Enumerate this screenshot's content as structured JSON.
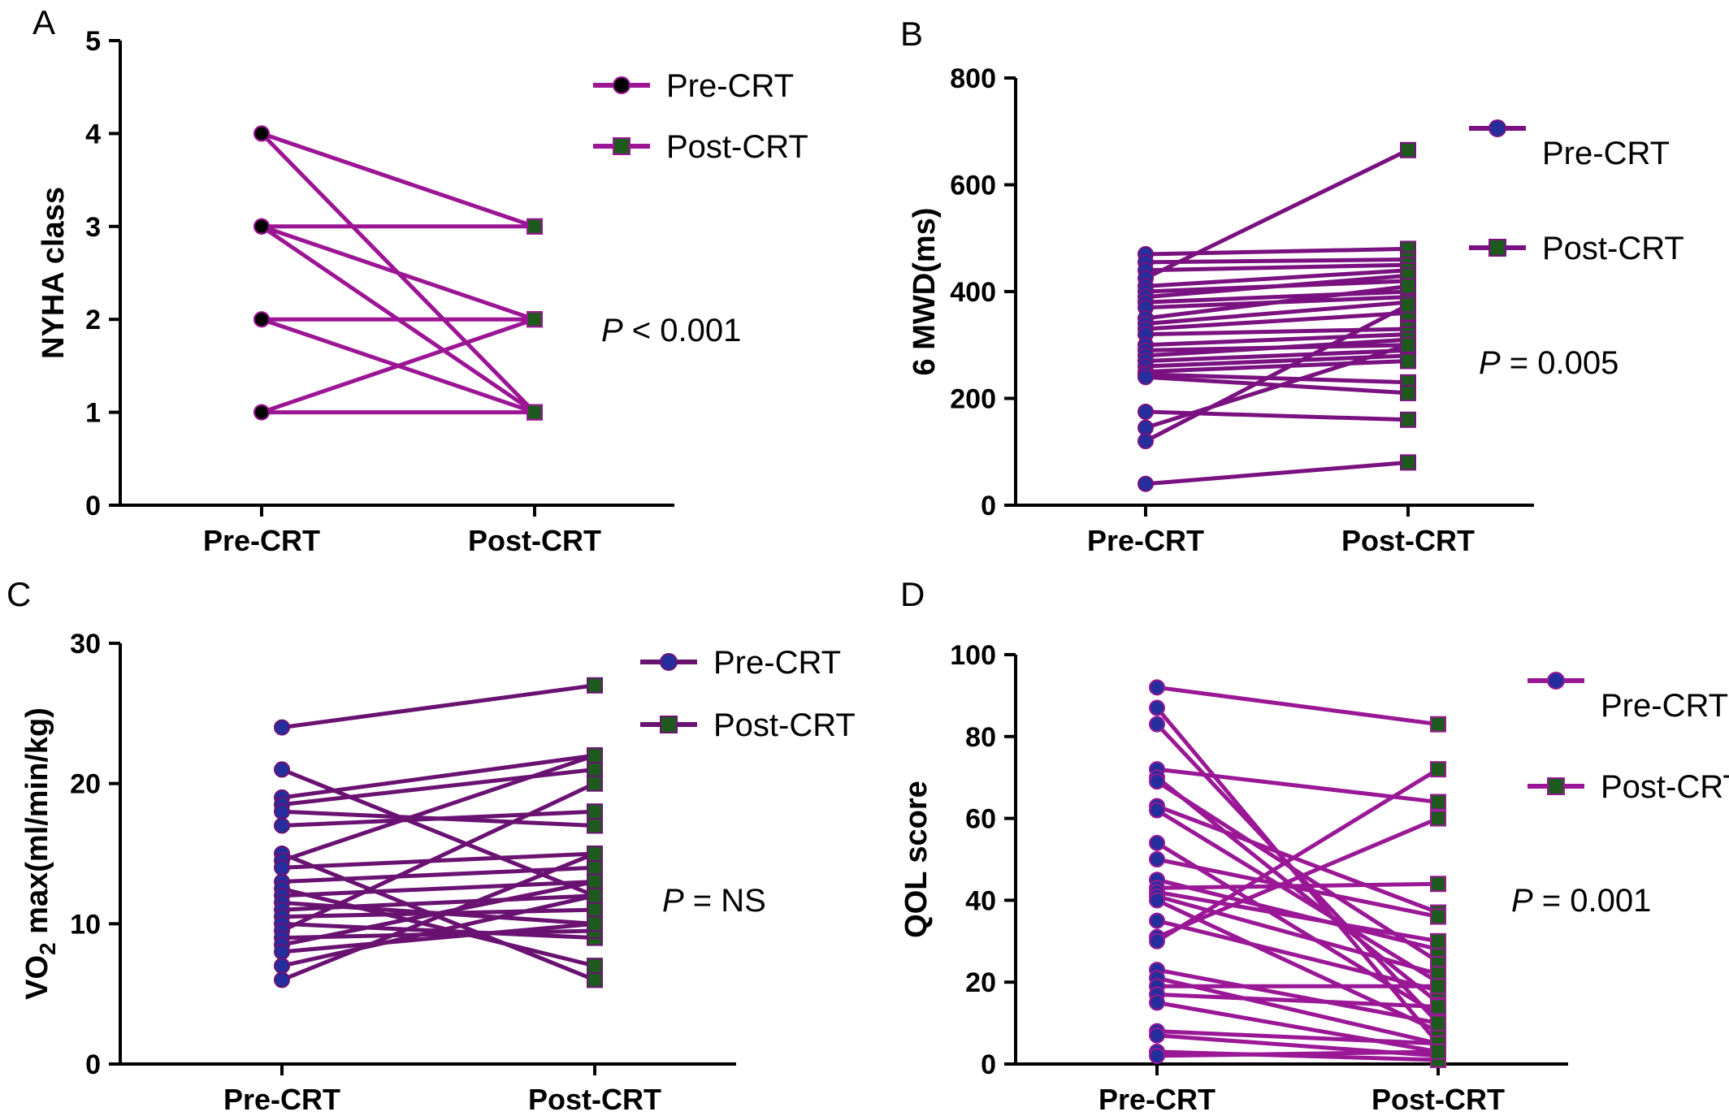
{
  "chart_data": [
    {
      "panel": "A",
      "type": "line",
      "ylabel": "NYHA class",
      "categories": [
        "Pre-CRT",
        "Post-CRT"
      ],
      "ylim": [
        0,
        5
      ],
      "yticks": [
        0,
        1,
        2,
        3,
        4,
        5
      ],
      "legend": {
        "pre": "Pre-CRT",
        "post": "Post-CRT",
        "placement": "top-right"
      },
      "pvalue": {
        "symbol": "P",
        "text": " < 0.001"
      },
      "line_color": "#9c1594",
      "pre_marker_color": "#000000",
      "post_marker_color": "#1e5a1e",
      "pairs": [
        [
          4,
          3
        ],
        [
          4,
          1
        ],
        [
          3,
          3
        ],
        [
          3,
          2
        ],
        [
          3,
          1
        ],
        [
          2,
          2
        ],
        [
          2,
          1
        ],
        [
          1,
          2
        ],
        [
          1,
          1
        ]
      ]
    },
    {
      "panel": "B",
      "type": "line",
      "ylabel": "6 MWD(ms)",
      "categories": [
        "Pre-CRT",
        "Post-CRT"
      ],
      "ylim": [
        0,
        800
      ],
      "yticks": [
        0,
        200,
        400,
        600,
        800
      ],
      "legend": {
        "pre": "Pre-CRT",
        "post": "Post-CRT",
        "placement": "top-right"
      },
      "pvalue": {
        "symbol": "P",
        "text": " = 0.005"
      },
      "line_color": "#7a1180",
      "pre_marker_color": "#262d9c",
      "post_marker_color": "#1e5a1e",
      "pairs": [
        [
          470,
          480
        ],
        [
          455,
          460
        ],
        [
          440,
          450
        ],
        [
          425,
          665
        ],
        [
          410,
          440
        ],
        [
          400,
          420
        ],
        [
          390,
          430
        ],
        [
          380,
          400
        ],
        [
          370,
          390
        ],
        [
          350,
          410
        ],
        [
          340,
          380
        ],
        [
          330,
          360
        ],
        [
          320,
          330
        ],
        [
          300,
          320
        ],
        [
          290,
          300
        ],
        [
          280,
          310
        ],
        [
          270,
          290
        ],
        [
          260,
          280
        ],
        [
          250,
          270
        ],
        [
          245,
          230
        ],
        [
          240,
          210
        ],
        [
          175,
          160
        ],
        [
          145,
          300
        ],
        [
          120,
          375
        ],
        [
          40,
          80
        ]
      ]
    },
    {
      "panel": "C",
      "type": "line",
      "ylabel": "VO2 max(ml/min/kg)",
      "categories": [
        "Pre-CRT",
        "Post-CRT"
      ],
      "ylim": [
        0,
        30
      ],
      "yticks": [
        0,
        10,
        20,
        30
      ],
      "legend": {
        "pre": "Pre-CRT",
        "post": "Post-CRT",
        "placement": "top-right"
      },
      "pvalue": {
        "symbol": "P",
        "text": " = NS"
      },
      "line_color": "#6a1272",
      "pre_marker_color": "#262d9c",
      "post_marker_color": "#1e5a1e",
      "pairs": [
        [
          24,
          27
        ],
        [
          21,
          12
        ],
        [
          19,
          22
        ],
        [
          18.5,
          21
        ],
        [
          18,
          17
        ],
        [
          17,
          18
        ],
        [
          15,
          6
        ],
        [
          14.5,
          22
        ],
        [
          14,
          15
        ],
        [
          13,
          14
        ],
        [
          12.5,
          7
        ],
        [
          12,
          13
        ],
        [
          11.5,
          10
        ],
        [
          11,
          12
        ],
        [
          10.5,
          11
        ],
        [
          10,
          9
        ],
        [
          9.5,
          20
        ],
        [
          9,
          9.5
        ],
        [
          8.5,
          13
        ],
        [
          8,
          10
        ],
        [
          7,
          12
        ],
        [
          6,
          15
        ]
      ]
    },
    {
      "panel": "D",
      "type": "line",
      "ylabel": "QOL score",
      "categories": [
        "Pre-CRT",
        "Post-CRT"
      ],
      "ylim": [
        0,
        100
      ],
      "yticks": [
        0,
        20,
        40,
        60,
        80,
        100
      ],
      "legend": {
        "pre": "Pre-CRT",
        "post": "Post-CRT",
        "placement": "top-right"
      },
      "pvalue": {
        "symbol": "P",
        "text": " = 0.001"
      },
      "line_color": "#9a1896",
      "pre_marker_color": "#262d9c",
      "post_marker_color": "#1e5a1e",
      "pairs": [
        [
          92,
          83
        ],
        [
          87,
          5
        ],
        [
          83,
          10
        ],
        [
          72,
          64
        ],
        [
          70,
          15
        ],
        [
          69,
          25
        ],
        [
          63,
          37
        ],
        [
          62,
          20
        ],
        [
          54,
          12
        ],
        [
          50,
          36
        ],
        [
          45,
          28
        ],
        [
          43,
          44
        ],
        [
          42,
          30
        ],
        [
          41,
          22
        ],
        [
          40,
          8
        ],
        [
          35,
          18
        ],
        [
          31,
          60
        ],
        [
          30,
          72
        ],
        [
          23,
          10
        ],
        [
          21,
          5
        ],
        [
          19,
          19
        ],
        [
          17,
          14
        ],
        [
          15,
          3
        ],
        [
          8,
          5
        ],
        [
          7,
          2
        ],
        [
          3,
          1
        ],
        [
          2,
          3
        ]
      ]
    }
  ]
}
